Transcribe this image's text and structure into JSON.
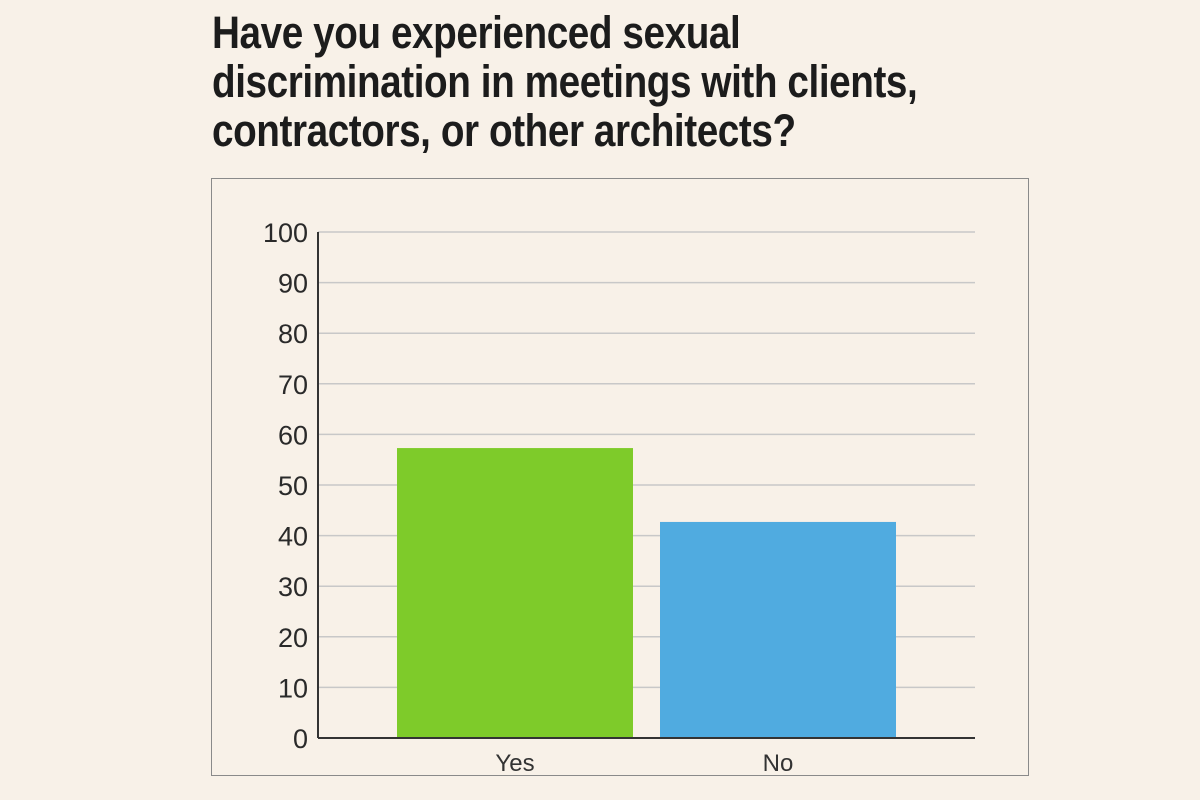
{
  "chart_data": {
    "type": "bar",
    "title": "Have you experienced sexual\ndiscrimination in meetings with clients,\ncontractors,  or other architects?",
    "categories": [
      "Yes",
      "No"
    ],
    "values": [
      57.3,
      42.7
    ],
    "ylim": [
      0,
      100
    ],
    "yticks": [
      0,
      10,
      20,
      30,
      40,
      50,
      60,
      70,
      80,
      90,
      100
    ],
    "grid": true,
    "colors": [
      "#7ecb2a",
      "#50abe0"
    ],
    "legend": "none"
  }
}
